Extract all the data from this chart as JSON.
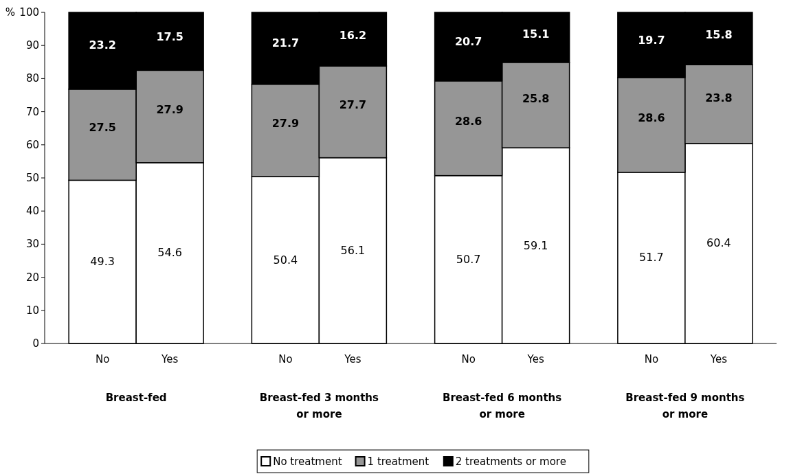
{
  "chart_data": {
    "type": "bar",
    "stacked": true,
    "ylabel": "%",
    "categories": [
      "No",
      "Yes",
      "No",
      "Yes",
      "No",
      "Yes",
      "No",
      "Yes"
    ],
    "series": [
      {
        "name": "No treatment",
        "color": "#ffffff",
        "values": [
          49.3,
          54.6,
          50.4,
          56.1,
          50.7,
          59.1,
          51.7,
          60.4
        ]
      },
      {
        "name": "1 treatment",
        "color": "#969696",
        "values": [
          27.5,
          27.9,
          27.9,
          27.7,
          28.6,
          25.8,
          28.6,
          23.8
        ]
      },
      {
        "name": "2 treatments or more",
        "color": "#000000",
        "values": [
          23.2,
          17.5,
          21.7,
          16.2,
          20.7,
          15.1,
          19.7,
          15.8
        ]
      }
    ],
    "annotations": [
      "Breast-fed",
      "Breast-fed 3 months or more",
      "Breast-fed 6 months or more",
      "Breast-fed 9 months or more"
    ],
    "ylim": [
      0,
      100
    ],
    "yticks": [
      0,
      10,
      20,
      30,
      40,
      50,
      60,
      70,
      80,
      90,
      100
    ],
    "data_labels": true,
    "legend": "bottom",
    "grid": false
  }
}
